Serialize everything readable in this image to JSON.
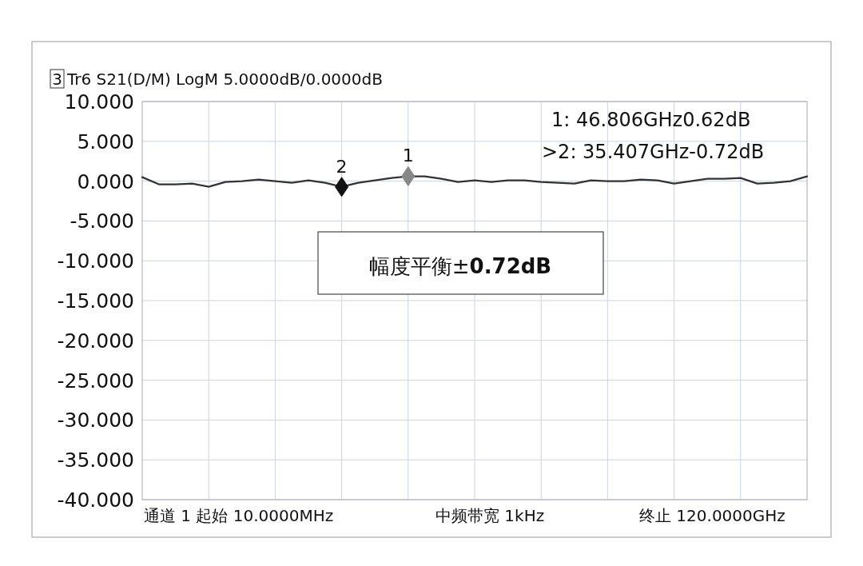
{
  "chart_data": {
    "type": "line",
    "title": "Tr6 S21(D/M) LogM 5.0000dB/0.0000dB",
    "categories": [
      null,
      null,
      null,
      null,
      null,
      null,
      null,
      null,
      null,
      null,
      null,
      null,
      null,
      null,
      null,
      null,
      null,
      null,
      null,
      null,
      null,
      null,
      null,
      null,
      null,
      null,
      null,
      null,
      null,
      null,
      null,
      null,
      null,
      null,
      null,
      null,
      null,
      null,
      null,
      null,
      null
    ],
    "series": [
      {
        "color": "#333333",
        "values": [
          0.5,
          -0.4,
          -0.4,
          -0.3,
          -0.7,
          -0.1,
          0.0,
          0.2,
          0.0,
          -0.2,
          0.1,
          -0.2,
          -0.7,
          -0.2,
          0.1,
          0.4,
          0.6,
          0.6,
          0.3,
          -0.1,
          0.1,
          -0.1,
          0.1,
          0.1,
          -0.1,
          -0.2,
          -0.3,
          0.1,
          0.0,
          0.0,
          0.2,
          0.1,
          -0.3,
          0.0,
          0.3,
          0.3,
          0.4,
          -0.3,
          -0.2,
          0.0,
          0.6
        ]
      },
      {
        "type": "scatter",
        "name": "1",
        "marker": "diamond",
        "color": "#888888",
        "values": [
          null,
          null,
          null,
          null,
          null,
          null,
          null,
          null,
          null,
          null,
          null,
          null,
          null,
          null,
          null,
          null,
          0.62,
          null,
          null,
          null,
          null,
          null,
          null,
          null,
          null,
          null,
          null,
          null,
          null,
          null,
          null,
          null,
          null,
          null,
          null,
          null,
          null,
          null,
          null,
          null,
          null
        ]
      },
      {
        "type": "scatter",
        "name": "2",
        "marker": "diamond",
        "color": "#111111",
        "values": [
          null,
          null,
          null,
          null,
          null,
          null,
          null,
          null,
          null,
          null,
          null,
          null,
          -0.72,
          null,
          null,
          null,
          null,
          null,
          null,
          null,
          null,
          null,
          null,
          null,
          null,
          null,
          null,
          null,
          null,
          null,
          null,
          null,
          null,
          null,
          null,
          null,
          null,
          null,
          null,
          null,
          null
        ]
      }
    ],
    "ylim": [
      -40,
      10
    ],
    "yticks": [
      {
        "value": 10,
        "label": "10.000"
      },
      {
        "value": 5,
        "label": "5.000"
      },
      {
        "value": 0,
        "label": "0.000"
      },
      {
        "value": -5,
        "label": "-5.000"
      },
      {
        "value": -10,
        "label": "-10.000"
      },
      {
        "value": -15,
        "label": "-15.000"
      },
      {
        "value": -20,
        "label": "-20.000"
      },
      {
        "value": -25,
        "label": "-25.000"
      },
      {
        "value": -30,
        "label": "-30.000"
      },
      {
        "value": -35,
        "label": "-35.000"
      },
      {
        "value": -40,
        "label": "-40.000"
      }
    ],
    "grid": true,
    "tick_labels": "y",
    "annotations": [
      "3",
      "1: 46.806GHz0.62dB",
      ">2: 35.407GHz-0.72dB",
      "幅度平衡±**0.72dB**",
      "通道 1 起始 10.0000MHz",
      "中频带宽 1kHz",
      "终止 120.0000GHz"
    ]
  }
}
